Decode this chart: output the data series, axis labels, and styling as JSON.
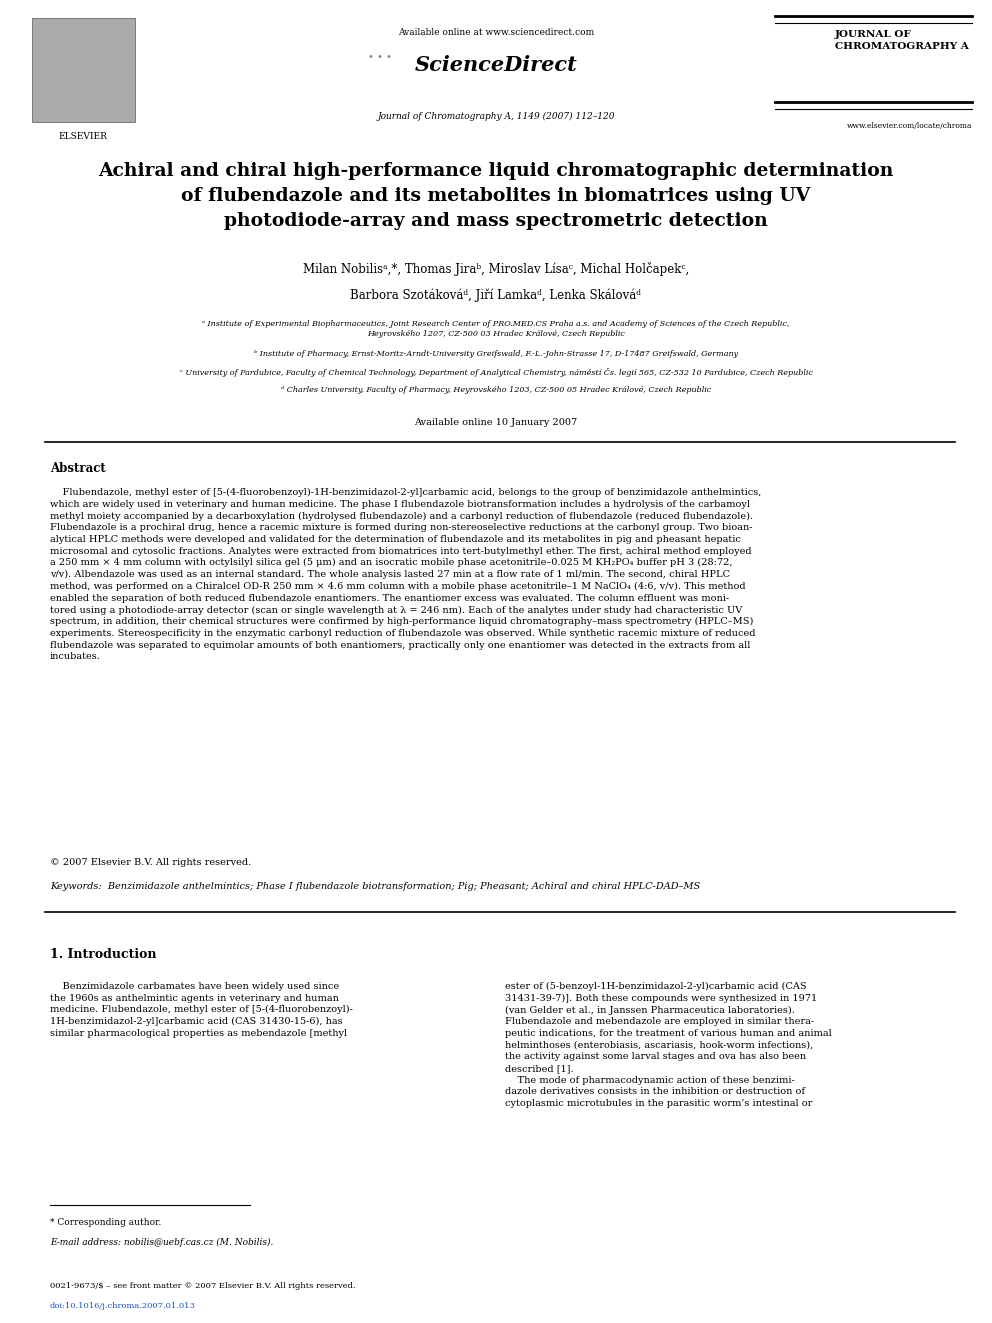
{
  "bg_color": "#ffffff",
  "page_width": 9.92,
  "page_height": 13.23,
  "header_available_online": "Available online at www.sciencedirect.com",
  "header_sciencedirect": "ScienceDirect",
  "header_journal_name": "JOURNAL OF\nCHROMATOGRAPHY A",
  "header_journal_ref": "Journal of Chromatography A, 1149 (2007) 112–120",
  "header_journal_url": "www.elsevier.com/locate/chroma",
  "elsevier_text": "ELSEVIER",
  "title": "Achiral and chiral high-performance liquid chromatographic determination\nof flubendazole and its metabolites in biomatrices using UV\nphotodiode-array and mass spectrometric detection",
  "author_line1": "Milan Nobilisᵃ,*, Thomas Jiraᵇ, Miroslav Lísaᶜ, Michal Holčapekᶜ,",
  "author_line2": "Barbora Szotákováᵈ, Jiří Lamkaᵈ, Lenka Skálováᵈ",
  "affil_a": "ᵃ Institute of Experimental Biopharmaceutics, Joint Research Center of PRO.MED.CS Praha a.s. and Academy of Sciences of the Czech Republic,\nHeyrovského 1207, CZ-500 03 Hradec Králové, Czech Republic",
  "affil_b": "ᵇ Institute of Pharmacy, Ernst-Moritz-Arndt-University Greifswald, F.-L.-John-Strasse 17, D-17487 Greifswald, Germany",
  "affil_c": "ᶜ University of Pardubice, Faculty of Chemical Technology, Department of Analytical Chemistry, náměstí Čs. legií 565, CZ-532 10 Pardubice, Czech Republic",
  "affil_d": "ᵈ Charles University, Faculty of Pharmacy, Heyrovského 1203, CZ-500 05 Hradec Králové, Czech Republic",
  "available_online_date": "Available online 10 January 2007",
  "abstract_title": "Abstract",
  "abstract_text": "    Flubendazole, methyl ester of [5-(4-fluorobenzoyl)-1H-benzimidazol-2-yl]carbamic acid, belongs to the group of benzimidazole anthelmintics,\nwhich are widely used in veterinary and human medicine. The phase I flubendazole biotransformation includes a hydrolysis of the carbamoyl\nmethyl moiety accompanied by a decarboxylation (hydrolysed flubendazole) and a carbonyl reduction of flubendazole (reduced flubendazole).\nFlubendazole is a prochiral drug, hence a racemic mixture is formed during non-stereoselective reductions at the carbonyl group. Two bioan-\nalytical HPLC methods were developed and validated for the determination of flubendazole and its metabolites in pig and pheasant hepatic\nmicrosomal and cytosolic fractions. Analytes were extracted from biomatrices into tert-butylmethyl ether. The first, achiral method employed\na 250 mm × 4 mm column with octylsilyl silica gel (5 μm) and an isocratic mobile phase acetonitrile–0.025 M KH₂PO₄ buffer pH 3 (28:72,\nv/v). Albendazole was used as an internal standard. The whole analysis lasted 27 min at a flow rate of 1 ml/min. The second, chiral HPLC\nmethod, was performed on a Chiralcel OD-R 250 mm × 4.6 mm column with a mobile phase acetonitrile–1 M NaClO₄ (4:6, v/v). This method\nenabled the separation of both reduced flubendazole enantiomers. The enantiomer excess was evaluated. The column effluent was moni-\ntored using a photodiode-array detector (scan or single wavelength at λ = 246 nm). Each of the analytes under study had characteristic UV\nspectrum, in addition, their chemical structures were confirmed by high-performance liquid chromatography–mass spectrometry (HPLC–MS)\nexperiments. Stereospecificity in the enzymatic carbonyl reduction of flubendazole was observed. While synthetic racemic mixture of reduced\nflubendazole was separated to equimolar amounts of both enantiomers, practically only one enantiomer was detected in the extracts from all\nincubates.",
  "copyright": "© 2007 Elsevier B.V. All rights reserved.",
  "keywords": "Keywords:  Benzimidazole anthelmintics; Phase I flubendazole biotransformation; Pig; Pheasant; Achiral and chiral HPLC-DAD–MS",
  "section1_title": "1. Introduction",
  "section1_col1": "    Benzimidazole carbamates have been widely used since\nthe 1960s as anthelmintic agents in veterinary and human\nmedicine. Flubendazole, methyl ester of [5-(4-fluorobenzoyl)-\n1H-benzimidazol-2-yl]carbamic acid (CAS 31430-15-6), has\nsimilar pharmacological properties as mebendazole [methyl",
  "section1_col2": "ester of (5-benzoyl-1H-benzimidazol-2-yl)carbamic acid (CAS\n31431-39-7)]. Both these compounds were synthesized in 1971\n(van Gelder et al., in Janssen Pharmaceutica laboratories).\nFlubendazole and mebendazole are employed in similar thera-\npeutic indications, for the treatment of various human and animal\nhelminthoses (enterobiasis, ascariasis, hook-worm infections),\nthe activity against some larval stages and ova has also been\ndescribed [1].\n    The mode of pharmacodynamic action of these benzimi-\ndazole derivatives consists in the inhibition or destruction of\ncytoplasmic microtubules in the parasitic worm’s intestinal or",
  "footnote_star": "* Corresponding author.",
  "footnote_email": "E-mail address: nobilis@uebf.cas.cz (M. Nobilis).",
  "footer_issn": "0021-9673/$ – see front matter © 2007 Elsevier B.V. All rights reserved.",
  "footer_doi": "doi:10.1016/j.chroma.2007.01.013"
}
